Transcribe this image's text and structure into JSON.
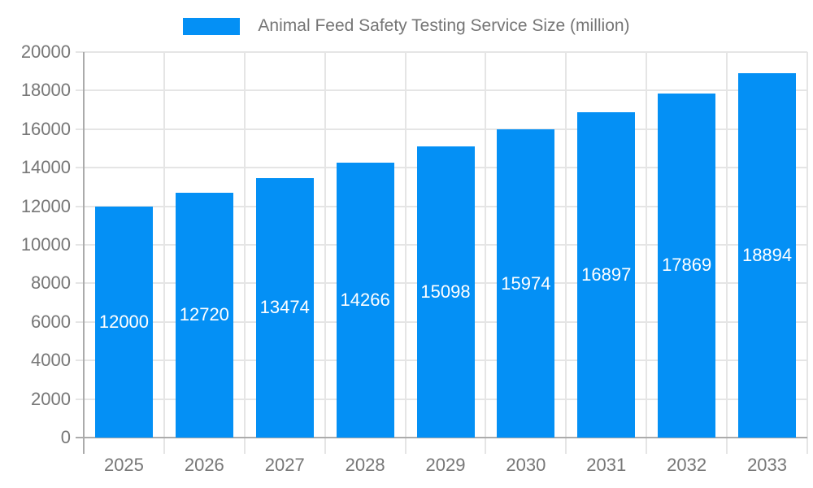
{
  "chart_data": {
    "type": "bar",
    "title": "Animal Feed Safety Testing Service Size (million)",
    "categories": [
      "2025",
      "2026",
      "2027",
      "2028",
      "2029",
      "2030",
      "2031",
      "2032",
      "2033"
    ],
    "values": [
      12000,
      12720,
      13474,
      14266,
      15098,
      15974,
      16897,
      17869,
      18894
    ],
    "value_labels": [
      "12000",
      "12720",
      "13474",
      "14266",
      "15098",
      "15974",
      "16897",
      "17869",
      "18894"
    ],
    "xlabel": "",
    "ylabel": "",
    "ylim": [
      0,
      20000
    ],
    "ytick_step": 2000,
    "ytick_labels": [
      "0",
      "2000",
      "4000",
      "6000",
      "8000",
      "10000",
      "12000",
      "14000",
      "16000",
      "18000",
      "20000"
    ],
    "grid": true,
    "legend_position": "top",
    "value_label_position": "center-of-bar"
  },
  "colors": {
    "bar": "#0490F5",
    "grid": "#E5E5E5",
    "axis": "#ABABAB",
    "tick_text": "#777777",
    "title_text": "#757575",
    "value_label_text": "#FFFFFF",
    "background": "#FFFFFF"
  }
}
